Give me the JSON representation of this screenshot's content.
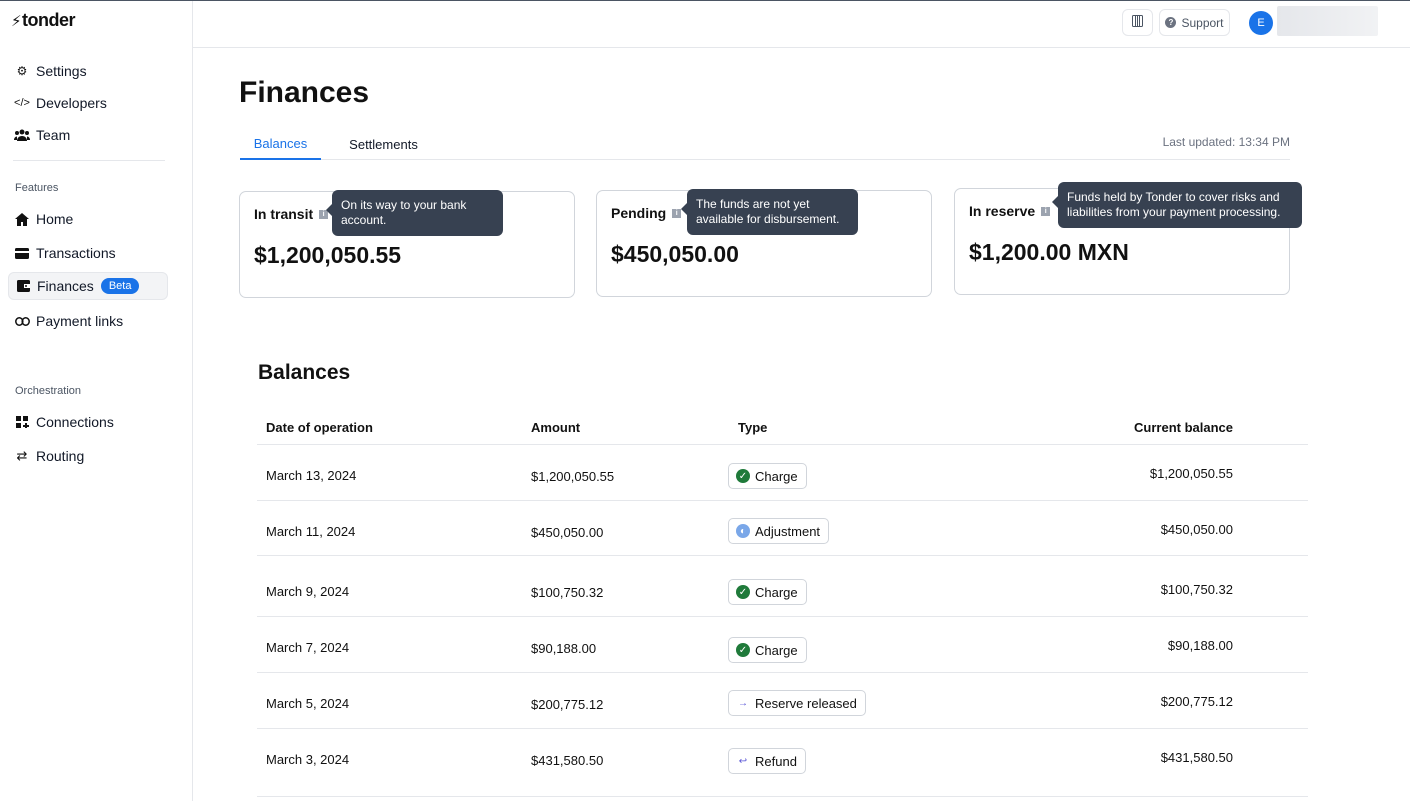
{
  "app": {
    "logo_text": "tonder"
  },
  "sidebar": {
    "top_items": [
      {
        "label": "Settings",
        "icon": "gear-icon"
      },
      {
        "label": "Developers",
        "icon": "code-icon"
      },
      {
        "label": "Team",
        "icon": "team-icon"
      }
    ],
    "features_heading": "Features",
    "feature_items": [
      {
        "label": "Home",
        "icon": "home-icon"
      },
      {
        "label": "Transactions",
        "icon": "card-icon"
      },
      {
        "label": "Finances",
        "icon": "wallet-icon",
        "badge": "Beta",
        "active": true
      },
      {
        "label": "Payment links",
        "icon": "link-icon"
      }
    ],
    "orchestration_heading": "Orchestration",
    "orchestration_items": [
      {
        "label": "Connections",
        "icon": "grid-icon"
      },
      {
        "label": "Routing",
        "icon": "routing-icon"
      }
    ]
  },
  "header": {
    "support_label": "Support",
    "avatar_initial": "E"
  },
  "page": {
    "title": "Finances",
    "tabs": [
      "Balances",
      "Settlements"
    ],
    "active_tab": "Balances",
    "last_updated": "Last updated: 13:34 PM"
  },
  "cards": [
    {
      "label": "In transit",
      "value": "$1,200,050.55",
      "tooltip": "On its way to your bank account."
    },
    {
      "label": "Pending",
      "value": "$450,050.00",
      "tooltip": "The funds are not yet available for disbursement."
    },
    {
      "label": "In reserve",
      "value": "$1,200.00 MXN",
      "tooltip": "Funds held by Tonder to cover risks and liabilities from your payment processing."
    }
  ],
  "balances": {
    "title": "Balances",
    "columns": [
      "Date of operation",
      "Amount",
      "Type",
      "Current balance"
    ],
    "rows": [
      {
        "date": "March 13, 2024",
        "amount": "$1,200,050.55",
        "type": "Charge",
        "type_icon": "check-circle-icon",
        "balance": "$1,200,050.55"
      },
      {
        "date": "March 11, 2024",
        "amount": "$450,050.00",
        "type": "Adjustment",
        "type_icon": "adjustment-icon",
        "balance": "$450,050.00"
      },
      {
        "date": "March 9, 2024",
        "amount": "$100,750.32",
        "type": "Charge",
        "type_icon": "check-circle-icon",
        "balance": "$100,750.32"
      },
      {
        "date": "March 7, 2024",
        "amount": "$90,188.00",
        "type": "Charge",
        "type_icon": "check-circle-icon",
        "balance": "$90,188.00"
      },
      {
        "date": "March 5, 2024",
        "amount": "$200,775.12",
        "type": "Reserve released",
        "type_icon": "arrow-right-icon",
        "balance": "$200,775.12"
      },
      {
        "date": "March 3, 2024",
        "amount": "$431,580.50",
        "type": "Refund",
        "type_icon": "refund-icon",
        "balance": "$431,580.50"
      }
    ]
  },
  "colors": {
    "accent": "#1a73e8",
    "charge_green": "#1f7a3a",
    "tooltip_bg": "#374151"
  }
}
